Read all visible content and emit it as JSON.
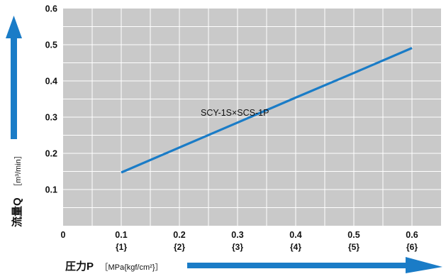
{
  "chart_data": {
    "type": "line",
    "title": "",
    "xlabel": {
      "main": "圧力P",
      "unit": "［MPa{kgf/cm²}］"
    },
    "ylabel": {
      "main": "流量Q",
      "unit": "［m³/min］"
    },
    "xlim": [
      0,
      0.65
    ],
    "ylim": [
      0,
      0.6
    ],
    "x_ticks": [
      {
        "value": 0,
        "label": "0",
        "sub": ""
      },
      {
        "value": 0.1,
        "label": "0.1",
        "sub": "{1}"
      },
      {
        "value": 0.2,
        "label": "0.2",
        "sub": "{2}"
      },
      {
        "value": 0.3,
        "label": "0.3",
        "sub": "{3}"
      },
      {
        "value": 0.4,
        "label": "0.4",
        "sub": "{4}"
      },
      {
        "value": 0.5,
        "label": "0.5",
        "sub": "{5}"
      },
      {
        "value": 0.6,
        "label": "0.6",
        "sub": "{6}"
      }
    ],
    "y_ticks": [
      {
        "value": 0.1,
        "label": "0.1"
      },
      {
        "value": 0.2,
        "label": "0.2"
      },
      {
        "value": 0.3,
        "label": "0.3"
      },
      {
        "value": 0.4,
        "label": "0.4"
      },
      {
        "value": 0.5,
        "label": "0.5"
      },
      {
        "value": 0.6,
        "label": "0.6"
      }
    ],
    "grid": true,
    "series": [
      {
        "name": "SCY-1S×SCS-1P",
        "color": "#1a7cc7",
        "x": [
          0.1,
          0.2,
          0.3,
          0.4,
          0.5,
          0.6
        ],
        "y": [
          0.147,
          0.216,
          0.285,
          0.354,
          0.422,
          0.491
        ]
      }
    ],
    "colors": {
      "plot_background": "#c9c9c9",
      "grid": "#ffffff",
      "arrow": "#1a7cc7"
    }
  }
}
